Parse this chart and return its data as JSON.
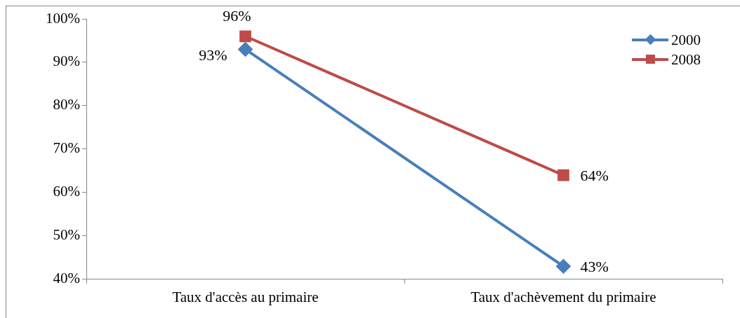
{
  "chart_data": {
    "type": "line",
    "categories": [
      "Taux d'accès au primaire",
      "Taux d'achèvement du primaire"
    ],
    "series": [
      {
        "name": "2000",
        "color": "#4a7ebb",
        "marker": "diamond",
        "values": [
          93,
          43
        ],
        "value_labels": [
          "93%",
          "43%"
        ]
      },
      {
        "name": "2008",
        "color": "#be4b48",
        "marker": "square",
        "values": [
          96,
          64
        ],
        "value_labels": [
          "96%",
          "64%"
        ]
      }
    ],
    "ylim": [
      40,
      100
    ],
    "yticks": [
      {
        "value": 40,
        "label": "40%"
      },
      {
        "value": 50,
        "label": "50%"
      },
      {
        "value": 60,
        "label": "60%"
      },
      {
        "value": 70,
        "label": "70%"
      },
      {
        "value": 80,
        "label": "80%"
      },
      {
        "value": 90,
        "label": "90%"
      },
      {
        "value": 100,
        "label": "100%"
      }
    ],
    "grid": false,
    "legend": "top right",
    "line_style": "solid"
  }
}
